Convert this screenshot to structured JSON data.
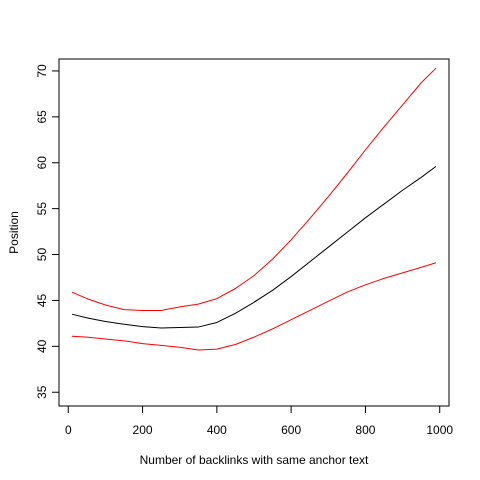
{
  "chart_data": {
    "type": "line",
    "xlabel": "Number of backlinks with same anchor text",
    "ylabel": "Position",
    "xlim": [
      -25,
      1025
    ],
    "ylim": [
      33.5,
      71.3
    ],
    "x_ticks": [
      0,
      200,
      400,
      600,
      800,
      1000
    ],
    "y_ticks": [
      35,
      40,
      45,
      50,
      55,
      60,
      65,
      70
    ],
    "grid": false,
    "legend": "none",
    "series": [
      {
        "color": "#000000",
        "points": [
          [
            10,
            43.5
          ],
          [
            50,
            43.1
          ],
          [
            100,
            42.7
          ],
          [
            150,
            42.4
          ],
          [
            200,
            42.15
          ],
          [
            250,
            42.0
          ],
          [
            300,
            42.05
          ],
          [
            350,
            42.1
          ],
          [
            400,
            42.6
          ],
          [
            450,
            43.6
          ],
          [
            500,
            44.8
          ],
          [
            550,
            46.1
          ],
          [
            600,
            47.6
          ],
          [
            650,
            49.2
          ],
          [
            700,
            50.8
          ],
          [
            750,
            52.4
          ],
          [
            800,
            54.0
          ],
          [
            850,
            55.5
          ],
          [
            900,
            57.0
          ],
          [
            950,
            58.4
          ],
          [
            990,
            59.6
          ]
        ]
      },
      {
        "color": "#ff0000",
        "points": [
          [
            10,
            45.9
          ],
          [
            50,
            45.2
          ],
          [
            100,
            44.5
          ],
          [
            150,
            44.0
          ],
          [
            200,
            43.9
          ],
          [
            250,
            43.9
          ],
          [
            300,
            44.3
          ],
          [
            350,
            44.6
          ],
          [
            400,
            45.2
          ],
          [
            450,
            46.3
          ],
          [
            500,
            47.7
          ],
          [
            550,
            49.5
          ],
          [
            600,
            51.6
          ],
          [
            650,
            53.9
          ],
          [
            700,
            56.3
          ],
          [
            750,
            58.8
          ],
          [
            800,
            61.4
          ],
          [
            850,
            63.9
          ],
          [
            900,
            66.3
          ],
          [
            950,
            68.7
          ],
          [
            990,
            70.3
          ]
        ]
      },
      {
        "color": "#ff0000",
        "points": [
          [
            10,
            41.1
          ],
          [
            50,
            41.0
          ],
          [
            100,
            40.8
          ],
          [
            150,
            40.6
          ],
          [
            200,
            40.3
          ],
          [
            250,
            40.1
          ],
          [
            300,
            39.9
          ],
          [
            350,
            39.6
          ],
          [
            400,
            39.7
          ],
          [
            450,
            40.2
          ],
          [
            500,
            41.0
          ],
          [
            550,
            41.9
          ],
          [
            600,
            42.9
          ],
          [
            650,
            43.9
          ],
          [
            700,
            44.9
          ],
          [
            750,
            45.9
          ],
          [
            800,
            46.7
          ],
          [
            850,
            47.4
          ],
          [
            900,
            48.0
          ],
          [
            950,
            48.6
          ],
          [
            990,
            49.1
          ]
        ]
      }
    ]
  }
}
